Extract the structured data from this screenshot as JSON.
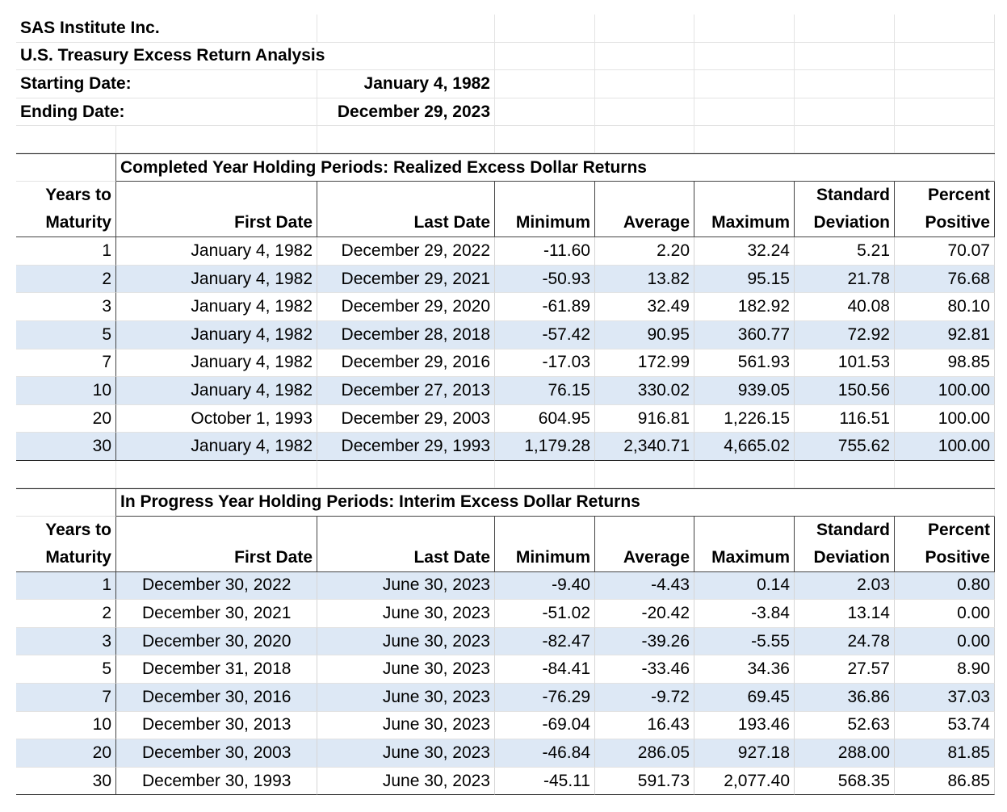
{
  "header": {
    "company": "SAS Institute Inc.",
    "report": "U.S. Treasury Excess Return Analysis",
    "start_label": "Starting Date:",
    "start_value": "January 4, 1982",
    "end_label": "Ending Date:",
    "end_value": "December 29, 2023"
  },
  "completed": {
    "title": "Completed  Year Holding Periods: Realized Excess Dollar Returns",
    "col_top": [
      "Years to",
      "",
      "",
      "",
      "",
      "",
      "Standard",
      "Percent"
    ],
    "col_bottom": [
      "Maturity",
      "First Date",
      "Last Date",
      "Minimum",
      "Average",
      "Maximum",
      "Deviation",
      "Positive"
    ],
    "rows": [
      [
        "1",
        "January 4, 1982",
        "December 29, 2022",
        "-11.60",
        "2.20",
        "32.24",
        "5.21",
        "70.07"
      ],
      [
        "2",
        "January 4, 1982",
        "December 29, 2021",
        "-50.93",
        "13.82",
        "95.15",
        "21.78",
        "76.68"
      ],
      [
        "3",
        "January 4, 1982",
        "December 29, 2020",
        "-61.89",
        "32.49",
        "182.92",
        "40.08",
        "80.10"
      ],
      [
        "5",
        "January 4, 1982",
        "December 28, 2018",
        "-57.42",
        "90.95",
        "360.77",
        "72.92",
        "92.81"
      ],
      [
        "7",
        "January 4, 1982",
        "December 29, 2016",
        "-17.03",
        "172.99",
        "561.93",
        "101.53",
        "98.85"
      ],
      [
        "10",
        "January 4, 1982",
        "December 27, 2013",
        "76.15",
        "330.02",
        "939.05",
        "150.56",
        "100.00"
      ],
      [
        "20",
        "October 1, 1993",
        "December 29, 2003",
        "604.95",
        "916.81",
        "1,226.15",
        "116.51",
        "100.00"
      ],
      [
        "30",
        "January 4, 1982",
        "December 29, 1993",
        "1,179.28",
        "2,340.71",
        "4,665.02",
        "755.62",
        "100.00"
      ]
    ]
  },
  "inprogress": {
    "title": "In Progress  Year Holding Periods: Interim Excess Dollar Returns",
    "col_top": [
      "Years to",
      "",
      "",
      "",
      "",
      "",
      "Standard",
      "Percent"
    ],
    "col_bottom": [
      "Maturity",
      "First Date",
      "Last Date",
      "Minimum",
      "Average",
      "Maximum",
      "Deviation",
      "Positive"
    ],
    "rows": [
      [
        "1",
        "December 30, 2022",
        "June 30, 2023",
        "-9.40",
        "-4.43",
        "0.14",
        "2.03",
        "0.80"
      ],
      [
        "2",
        "December 30, 2021",
        "June 30, 2023",
        "-51.02",
        "-20.42",
        "-3.84",
        "13.14",
        "0.00"
      ],
      [
        "3",
        "December 30, 2020",
        "June 30, 2023",
        "-82.47",
        "-39.26",
        "-5.55",
        "24.78",
        "0.00"
      ],
      [
        "5",
        "December 31, 2018",
        "June 30, 2023",
        "-84.41",
        "-33.46",
        "34.36",
        "27.57",
        "8.90"
      ],
      [
        "7",
        "December 30, 2016",
        "June 30, 2023",
        "-76.29",
        "-9.72",
        "69.45",
        "36.86",
        "37.03"
      ],
      [
        "10",
        "December 30, 2013",
        "June 30, 2023",
        "-69.04",
        "16.43",
        "193.46",
        "52.63",
        "53.74"
      ],
      [
        "20",
        "December 30, 2003",
        "June 30, 2023",
        "-46.84",
        "286.05",
        "927.18",
        "288.00",
        "81.85"
      ],
      [
        "30",
        "December 30, 1993",
        "June 30, 2023",
        "-45.11",
        "591.73",
        "2,077.40",
        "568.35",
        "86.85"
      ]
    ]
  },
  "colors": {
    "band": "#dde8f5",
    "grid": "#e3e3e3",
    "rule": "#222222"
  }
}
